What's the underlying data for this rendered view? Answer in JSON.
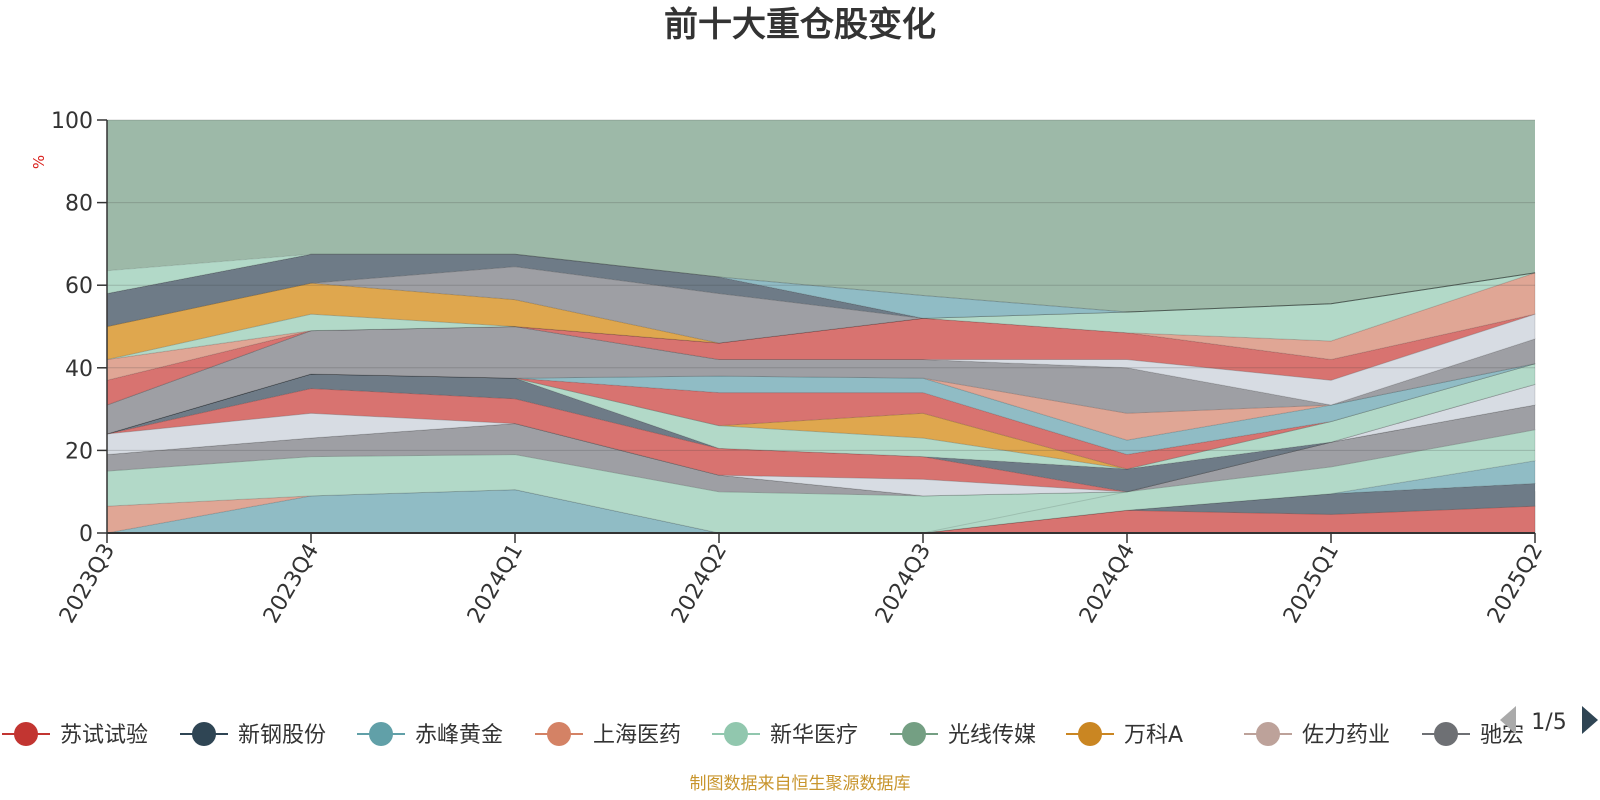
{
  "chart_data": {
    "type": "area",
    "title": "前十大重仓股变化",
    "ylabel": "%",
    "ylim": [
      0,
      100
    ],
    "yticks": [
      0,
      20,
      40,
      60,
      80,
      100
    ],
    "grid": true,
    "x": [
      "2023Q3",
      "2023Q4",
      "2024Q1",
      "2024Q2",
      "2024Q3",
      "2024Q4",
      "2025Q1",
      "2025Q2"
    ],
    "legend_position": "bottom",
    "legend_page": "1/5",
    "background_series_color": "#9db9a8",
    "bands": [
      {
        "color": "#90bcc5",
        "lower": [
          0,
          0,
          0,
          0,
          0,
          0,
          0,
          0
        ],
        "upper": [
          0,
          9,
          10.5,
          0,
          0,
          0,
          0,
          0
        ]
      },
      {
        "color": "#e0a695",
        "lower": [
          0,
          9,
          10.5,
          0,
          0,
          0,
          0,
          0
        ],
        "upper": [
          6.5,
          9,
          10.5,
          0,
          0,
          0,
          0,
          0
        ]
      },
      {
        "color": "#b2d9c8",
        "lower": [
          6.5,
          9,
          10.5,
          0,
          0,
          0,
          0,
          0
        ],
        "upper": [
          15,
          18.5,
          19,
          10,
          9,
          10,
          10,
          10
        ]
      },
      {
        "color": "#d87370",
        "lower": [
          0,
          0,
          0,
          0,
          0,
          0,
          0,
          0
        ],
        "upper": [
          0,
          0,
          0,
          0,
          0,
          5.5,
          4.5,
          6.5
        ]
      },
      {
        "color": "#6e7b87",
        "lower": [
          0,
          0,
          0,
          0,
          0,
          5.5,
          4.5,
          6.5
        ],
        "upper": [
          0,
          0,
          0,
          0,
          0,
          5.5,
          9.5,
          12
        ]
      },
      {
        "color": "#90bcc5",
        "lower": [
          0,
          0,
          0,
          0,
          0,
          5.5,
          9.5,
          12
        ],
        "upper": [
          0,
          0,
          0,
          0,
          0,
          5.5,
          9.5,
          17.5
        ]
      },
      {
        "color": "#b2d9c8",
        "lower": [
          0,
          0,
          0,
          0,
          0,
          5.5,
          9.5,
          17.5
        ],
        "upper": [
          0,
          0,
          0,
          0,
          0,
          10,
          16,
          25
        ]
      },
      {
        "color": "#9e9fa4",
        "lower": [
          15,
          18.5,
          19,
          10,
          9,
          10,
          16,
          25
        ],
        "upper": [
          19,
          23,
          26.5,
          14,
          9,
          10,
          22,
          31
        ]
      },
      {
        "color": "#dfa74e",
        "lower": [
          19,
          23,
          26.5,
          14,
          9,
          10,
          22,
          31
        ],
        "upper": [
          19,
          23,
          26.5,
          14,
          9,
          10,
          22,
          31
        ]
      },
      {
        "color": "#d7dce3",
        "lower": [
          19,
          23,
          26.5,
          14,
          9,
          10,
          22,
          31
        ],
        "upper": [
          24,
          29,
          26.5,
          14,
          13,
          10,
          22,
          36
        ]
      },
      {
        "color": "#d87370",
        "lower": [
          24,
          29,
          26.5,
          14,
          13,
          10,
          22,
          36
        ],
        "upper": [
          24,
          35,
          32.5,
          20.5,
          18.5,
          10,
          22,
          36
        ]
      },
      {
        "color": "#6e7b87",
        "lower": [
          24,
          35,
          32.5,
          20.5,
          18.5,
          10,
          22,
          36
        ],
        "upper": [
          24,
          38.5,
          37.5,
          20.5,
          18.5,
          15.5,
          22,
          36
        ]
      },
      {
        "color": "#b2d9c8",
        "lower": [
          24,
          38.5,
          37.5,
          20.5,
          18.5,
          15.5,
          22,
          36
        ],
        "upper": [
          24,
          38.5,
          37.5,
          26,
          23,
          15.5,
          27,
          41
        ]
      },
      {
        "color": "#dfa74e",
        "lower": [
          24,
          38.5,
          37.5,
          26,
          23,
          15.5,
          27,
          41
        ],
        "upper": [
          24,
          38.5,
          37.5,
          26,
          29,
          15.5,
          27,
          41
        ]
      },
      {
        "color": "#d87370",
        "lower": [
          24,
          38.5,
          37.5,
          26,
          29,
          15.5,
          27,
          41
        ],
        "upper": [
          24,
          38.5,
          37.5,
          34,
          34,
          19,
          27,
          41
        ]
      },
      {
        "color": "#90bcc5",
        "lower": [
          24,
          38.5,
          37.5,
          34,
          34,
          19,
          27,
          41
        ],
        "upper": [
          24,
          38.5,
          37.5,
          38,
          37.5,
          22.5,
          31,
          41
        ]
      },
      {
        "color": "#e0a695",
        "lower": [
          24,
          38.5,
          37.5,
          38,
          37.5,
          22.5,
          31,
          41
        ],
        "upper": [
          24,
          38.5,
          37.5,
          38,
          37.5,
          29,
          31,
          41
        ]
      },
      {
        "color": "#9e9fa4",
        "lower": [
          24,
          38.5,
          37.5,
          38,
          37.5,
          29,
          31,
          41
        ],
        "upper": [
          31,
          49,
          50,
          42,
          42,
          40,
          31,
          47
        ]
      },
      {
        "color": "#d7dce3",
        "lower": [
          31,
          49,
          50,
          42,
          42,
          40,
          31,
          47
        ],
        "upper": [
          31,
          49,
          50,
          42,
          42,
          42,
          37,
          53
        ]
      },
      {
        "color": "#d87370",
        "lower": [
          31,
          49,
          50,
          42,
          42,
          42,
          37,
          53
        ],
        "upper": [
          37,
          49,
          50,
          46,
          52,
          48.5,
          42,
          53
        ]
      },
      {
        "color": "#e0a695",
        "lower": [
          37,
          49,
          50,
          46,
          52,
          48.5,
          42,
          53
        ],
        "upper": [
          42,
          49,
          50,
          46,
          52,
          48.5,
          46.5,
          63
        ]
      },
      {
        "color": "#b2d9c8",
        "lower": [
          42,
          49,
          50,
          46,
          52,
          48.5,
          46.5,
          63
        ],
        "upper": [
          42,
          53,
          50,
          46,
          52,
          53.5,
          55.5,
          63
        ]
      },
      {
        "color": "#dfa74e",
        "lower": [
          42,
          53,
          50,
          46,
          52,
          53.5,
          55.5,
          63
        ],
        "upper": [
          50,
          60.5,
          56.5,
          46,
          52,
          53.5,
          55.5,
          63
        ]
      },
      {
        "color": "#9e9fa4",
        "lower": [
          50,
          60.5,
          56.5,
          46,
          52,
          53.5,
          55.5,
          63
        ],
        "upper": [
          50,
          60.5,
          64.5,
          58,
          52,
          53.5,
          55.5,
          63
        ]
      },
      {
        "color": "#6e7b87",
        "lower": [
          50,
          60.5,
          64.5,
          58,
          52,
          53.5,
          55.5,
          63
        ],
        "upper": [
          58,
          67.5,
          67.5,
          62,
          52,
          53.5,
          55.5,
          63
        ]
      },
      {
        "color": "#90bcc5",
        "lower": [
          58,
          67.5,
          67.5,
          62,
          52,
          53.5,
          55.5,
          63
        ],
        "upper": [
          58,
          67.5,
          67.5,
          62,
          57.5,
          53.5,
          55.5,
          63
        ]
      },
      {
        "color": "#b2d9c8",
        "lower": [
          58,
          67.5,
          67.5,
          62,
          57.5,
          53.5,
          55.5,
          63
        ],
        "upper": [
          63.5,
          67.5,
          67.5,
          62,
          57.5,
          53.5,
          55.5,
          63
        ]
      }
    ]
  },
  "legend": {
    "items": [
      {
        "label": "苏试试验",
        "color": "#c23531"
      },
      {
        "label": "新钢股份",
        "color": "#2f4554"
      },
      {
        "label": "赤峰黄金",
        "color": "#61a0a8"
      },
      {
        "label": "上海医药",
        "color": "#d48265"
      },
      {
        "label": "新华医疗",
        "color": "#91c7ae"
      },
      {
        "label": "光线传媒",
        "color": "#749f83"
      },
      {
        "label": "万科A",
        "color": "#ca8622"
      },
      {
        "label": "佐力药业",
        "color": "#bda29a"
      },
      {
        "label": "驰宏",
        "color": "#6e7074"
      }
    ],
    "page": "1/5"
  },
  "footer": "制图数据来自恒生聚源数据库",
  "colors": {
    "footer": "#c8952d",
    "unit": "#d9201c",
    "axis": "#333333",
    "grid": "#d6d6d6"
  },
  "icons": {
    "prev": "triangle-left-icon",
    "next": "triangle-right-icon"
  }
}
